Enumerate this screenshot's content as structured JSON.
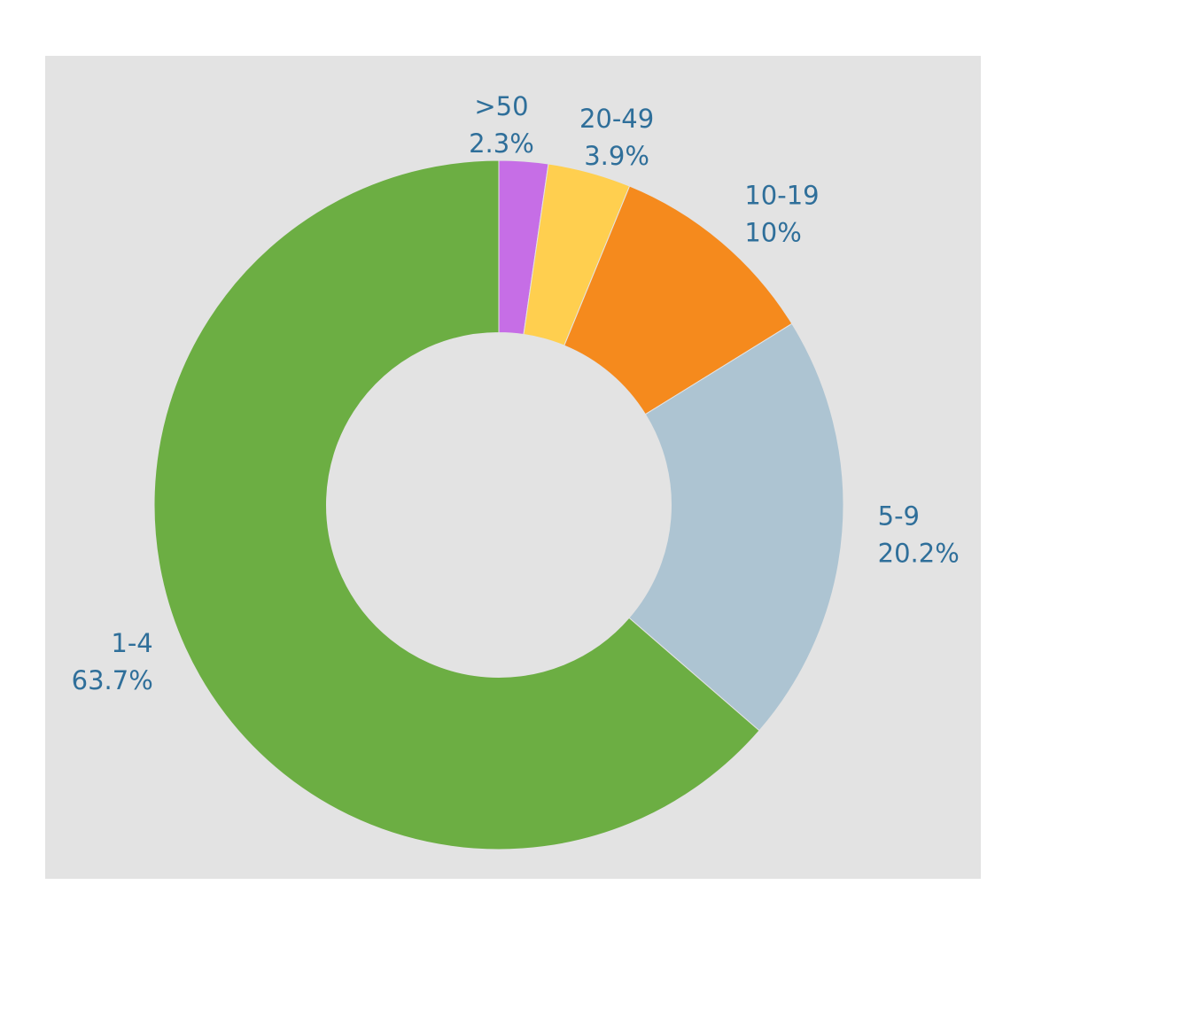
{
  "chart_data": {
    "type": "pie",
    "hole": 0.5,
    "direction": "clockwise",
    "start": "top",
    "categories": [
      ">50",
      "20-49",
      "10-19",
      "5-9",
      "1-4"
    ],
    "values": [
      2.3,
      3.9,
      10,
      20.2,
      63.7
    ],
    "value_labels": [
      "2.3%",
      "3.9%",
      "10%",
      "20.2%",
      "63.7%"
    ],
    "colors": [
      "#c66ee6",
      "#ffcf4f",
      "#f58a1d",
      "#adc4d2",
      "#6cae43"
    ],
    "label_color": "#2f6f9a",
    "background": "#e3e3e3",
    "title": ""
  }
}
